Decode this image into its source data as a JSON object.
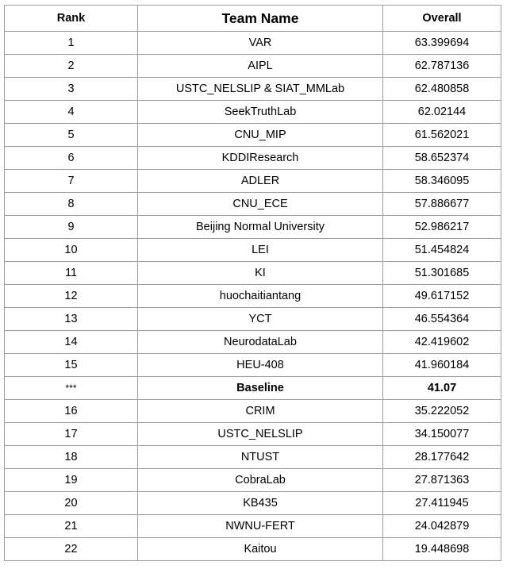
{
  "table": {
    "headers": {
      "rank": "Rank",
      "team": "Team Name",
      "overall": "Overall"
    },
    "rows": [
      {
        "rank": "1",
        "team": "VAR",
        "overall": "63.399694"
      },
      {
        "rank": "2",
        "team": "AIPL",
        "overall": "62.787136"
      },
      {
        "rank": "3",
        "team": "USTC_NELSLIP & SIAT_MMLab",
        "overall": "62.480858"
      },
      {
        "rank": "4",
        "team": "SeekTruthLab",
        "overall": "62.02144"
      },
      {
        "rank": "5",
        "team": "CNU_MIP",
        "overall": "61.562021"
      },
      {
        "rank": "6",
        "team": "KDDIResearch",
        "overall": "58.652374"
      },
      {
        "rank": "7",
        "team": "ADLER",
        "overall": "58.346095"
      },
      {
        "rank": "8",
        "team": "CNU_ECE",
        "overall": "57.886677"
      },
      {
        "rank": "9",
        "team": "Beijing Normal University",
        "overall": "52.986217"
      },
      {
        "rank": "10",
        "team": "LEI",
        "overall": "51.454824"
      },
      {
        "rank": "11",
        "team": "KI",
        "overall": "51.301685"
      },
      {
        "rank": "12",
        "team": "huochaitiantang",
        "overall": "49.617152"
      },
      {
        "rank": "13",
        "team": "YCT",
        "overall": "46.554364"
      },
      {
        "rank": "14",
        "team": "NeurodataLab",
        "overall": "42.419602"
      },
      {
        "rank": "15",
        "team": "HEU-408",
        "overall": "41.960184"
      },
      {
        "rank": "***",
        "team": "Baseline",
        "overall": "41.07",
        "highlight": true
      },
      {
        "rank": "16",
        "team": "CRIM",
        "overall": "35.222052"
      },
      {
        "rank": "17",
        "team": "USTC_NELSLIP",
        "overall": "34.150077"
      },
      {
        "rank": "18",
        "team": "NTUST",
        "overall": "28.177642"
      },
      {
        "rank": "19",
        "team": "CobraLab",
        "overall": "27.871363"
      },
      {
        "rank": "20",
        "team": "KB435",
        "overall": "27.411945"
      },
      {
        "rank": "21",
        "team": "NWNU-FERT",
        "overall": "24.042879"
      },
      {
        "rank": "22",
        "team": "Kaitou",
        "overall": "19.448698"
      }
    ]
  }
}
